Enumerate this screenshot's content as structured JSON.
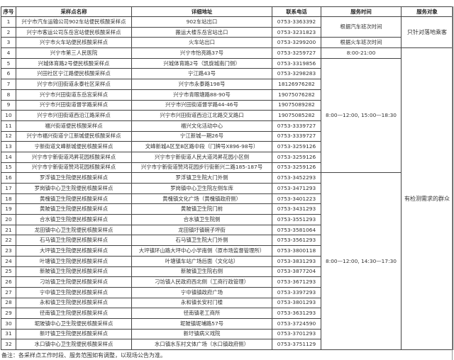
{
  "headers": [
    "序号",
    "采样点名称",
    "详细地址",
    "联系电话",
    "服务时间",
    "服务对象"
  ],
  "rows": [
    {
      "no": "1",
      "name": "兴宁市汽车运输公司902车站便民核酸采样点",
      "address": "902车站出口",
      "phone": "0753-3363392"
    },
    {
      "no": "2",
      "name": "兴宁市客运公司东岳宫站便民核酸采样点",
      "address": "搬运大楼东岳宫站出口",
      "phone": "0753-3231823"
    },
    {
      "no": "3",
      "name": "兴宁市火车站便民核酸采样点",
      "address": "火车站出口",
      "phone": "0753-3299200"
    },
    {
      "no": "4",
      "name": "兴宁市第三人民医院",
      "address": "兴宁市怡亮路37号",
      "phone": "0753-3259727"
    },
    {
      "no": "5",
      "name": "兴城体育路2号便民核酸采样点",
      "address": "兴城体育路2号（凯旋城南门侧）",
      "phone": "0753-3319856"
    },
    {
      "no": "6",
      "name": "兴田社区宁江路便民核酸采样点",
      "address": "宁江路43号",
      "phone": "0753-3298283"
    },
    {
      "no": "7",
      "name": "兴宁市兴田街道永泰社区采样点",
      "address": "兴宁市永泰路198号",
      "phone": "18126976282"
    },
    {
      "no": "8",
      "name": "兴宁市兴田街道东岳宫采样点",
      "address": "兴宁市青眼塘路88-90号",
      "phone": "19075076282"
    },
    {
      "no": "9",
      "name": "兴宁市兴田街道督学路采样点",
      "address": "兴宁市兴田街道督学路44-46号",
      "phone": "19075089282"
    },
    {
      "no": "10",
      "name": "兴宁市兴田街道西沿江路采样点",
      "address": "兴宁市兴田街道西沿江北路交叉路口",
      "phone": "19075085282"
    },
    {
      "no": "11",
      "name": "福兴街道便民核酸采样点",
      "address": "福兴文化活动中心",
      "phone": "0753-3339727"
    },
    {
      "no": "12",
      "name": "兴宁市福兴街道宁江新城便民核酸采样点",
      "address": "宁江新城一期26号",
      "phone": "0753-3339727"
    },
    {
      "no": "13",
      "name": "宁新街道文峰新城便民核酸采样点",
      "address": "文峰新城A区至B区路中段（门牌号X896-98号）",
      "phone": "0753-3259126"
    },
    {
      "no": "14",
      "name": "兴宁市宁新街道鸿昇花园核酸采样点",
      "address": "兴宁市宁新街道人民大道鸿昇花园小区侧",
      "phone": "0753-3259126"
    },
    {
      "no": "15",
      "name": "兴宁市宁新街道赞鸿花园核酸采样点",
      "address": "兴宁市宁新街道赞鸿花园步行街新兴二路185-187号",
      "phone": "0753-3259126"
    },
    {
      "no": "16",
      "name": "罗浮镇卫生院便民核酸采样点",
      "address": "罗浮镇卫生院大门外侧",
      "phone": "0753-3452293"
    },
    {
      "no": "17",
      "name": "罗岗镇中心卫生院便民核酸采样点",
      "address": "罗岗镇中心卫生院左侧车库",
      "phone": "0753-3471293"
    },
    {
      "no": "18",
      "name": "黄槐镇卫生院便民核酸采样点",
      "address": "黄槐镇文化广场（黄槐镇政府侧）",
      "phone": "0753-3401223"
    },
    {
      "no": "19",
      "name": "黄陂镇卫生院便民核酸采样点",
      "address": "黄陂镇卫生院门前",
      "phone": "0753-3431293"
    },
    {
      "no": "20",
      "name": "合水镇卫生院便民核酸采样点",
      "address": "合水镇卫生院侧",
      "phone": "0753-3551293"
    },
    {
      "no": "21",
      "name": "龙田镇中心卫生院便民核酸采样点",
      "address": "龙田镇圩镇碗子坪街",
      "phone": "0753-3581064"
    },
    {
      "no": "22",
      "name": "石马镇卫生院便民核酸采样点",
      "address": "石马镇卫生院大门外侧",
      "phone": "0753-3561293"
    },
    {
      "no": "23",
      "name": "大坪镇卫生院便民核酸采样点",
      "address": "大坪镇环山路大坪中心小学南侧（原市场监督管理所）",
      "phone": "0753-3800118"
    },
    {
      "no": "24",
      "name": "叶塘镇卫生院便民核酸采样点",
      "address": "叶塘镇车站广场后面（文化站）",
      "phone": "0753-3831293"
    },
    {
      "no": "25",
      "name": "新陂镇卫生院便民核酸采样点",
      "address": "新陂镇卫生院右侧",
      "phone": "0753-3877204"
    },
    {
      "no": "26",
      "name": "刁坊镇卫生院便民核酸采样点",
      "address": "刁坊镇人民政府西北侧（工商行政管理）",
      "phone": "0753-3671293"
    },
    {
      "no": "27",
      "name": "宁中镇卫生院便民核酸采样点",
      "address": "宁中镇镇政府广场",
      "phone": "0753-3397293"
    },
    {
      "no": "28",
      "name": "永和镇卫生院便民核酸采样点",
      "address": "永和镇长安村门楼",
      "phone": "0753-3801293"
    },
    {
      "no": "29",
      "name": "径南镇卫生院便民核酸采样点",
      "address": "径南镇老工商所",
      "phone": "0753-3631293"
    },
    {
      "no": "30",
      "name": "坭陂镇中心卫生院便民核酸采样点",
      "address": "坭陂镇坭埔路57号",
      "phone": "0753-3724590"
    },
    {
      "no": "31",
      "name": "新圩镇卫生院便民核酸采样点",
      "address": "新圩镇病义戏院",
      "phone": "0753-3701293"
    },
    {
      "no": "32",
      "name": "水口镇中心卫生院便民核酸采样点",
      "address": "水口镇水东村文体广场（水口镇政府侧）",
      "phone": "0753-3751129"
    }
  ],
  "time_groups": [
    {
      "label": "根据汽车班次时间",
      "rows": "1-2"
    },
    {
      "label": "根据火车班次时间",
      "rows": "3"
    },
    {
      "label": "8:00-21:00",
      "rows": "4"
    },
    {
      "label": "8:00—12:00, 15:00—18:30",
      "rows": "5-15"
    },
    {
      "label": "8:00—12:00, 14:30—17:30",
      "rows": "16-32"
    }
  ],
  "target_groups": [
    {
      "label": "只针对落地乘客",
      "rows": "1-3"
    },
    {
      "label": "有检测需求的群众",
      "rows": "4-32"
    }
  ],
  "note": "备注：各采样点工作时段、服务范围如有调整，以现场公告为准。"
}
